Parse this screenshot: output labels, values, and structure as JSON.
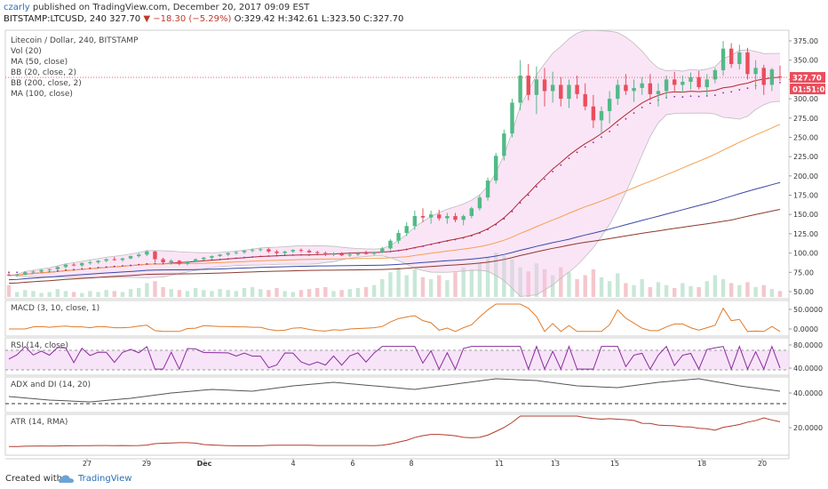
{
  "header": {
    "user": "czarly",
    "published_text": "published on TradingView.com, December 20, 2017 09:09 EST",
    "symbol": "BITSTAMP:LTCUSD, 240",
    "last": "327.70",
    "change": "−18.30 (−5.29%)",
    "ohlc": "O:329.42 H:342.61 L:323.50 C:327.70"
  },
  "legend": [
    "Litecoin / Dollar, 240, BITSTAMP",
    "Vol (20)",
    "MA (50, close)",
    "BB (20, close, 2)",
    "BB (200, close, 2)",
    "MA (100, close)"
  ],
  "price_tag": "327.70",
  "timer_tag": "01:51:02",
  "colors": {
    "up": "#53b987",
    "down": "#eb4d5c",
    "ma50": "#f5a04e",
    "bb20": "#b3282d",
    "bb200": "#6f2a8a",
    "ma100": "#8b3a2f",
    "blue": "#3b48a5",
    "macd": "#e07b2a",
    "rsi": "#8a2b9e",
    "adx": "#555555",
    "atr": "#b13c2c"
  },
  "chart_data": {
    "type": "candlestick",
    "price_axis": {
      "min": 50,
      "max": 375,
      "ticks": [
        "375.00",
        "350.00",
        "325.00",
        "300.00",
        "275.00",
        "250.00",
        "225.00",
        "200.00",
        "175.00",
        "150.00",
        "125.00",
        "100.00",
        "75.00",
        "50.00"
      ]
    },
    "x_ticks": [
      "27",
      "29",
      "Dec",
      "4",
      "6",
      "8",
      "11",
      "13",
      "15",
      "18",
      "20"
    ],
    "candles": [
      [
        72,
        74,
        70,
        71
      ],
      [
        71,
        73,
        69,
        72
      ],
      [
        72,
        76,
        71,
        75
      ],
      [
        75,
        78,
        73,
        76
      ],
      [
        76,
        79,
        74,
        78
      ],
      [
        78,
        80,
        76,
        79
      ],
      [
        79,
        83,
        78,
        82
      ],
      [
        82,
        86,
        80,
        85
      ],
      [
        85,
        87,
        83,
        84
      ],
      [
        84,
        88,
        82,
        87
      ],
      [
        87,
        90,
        85,
        88
      ],
      [
        88,
        91,
        86,
        90
      ],
      [
        90,
        93,
        88,
        92
      ],
      [
        92,
        95,
        90,
        91
      ],
      [
        91,
        94,
        89,
        93
      ],
      [
        93,
        97,
        92,
        96
      ],
      [
        96,
        100,
        94,
        98
      ],
      [
        98,
        104,
        96,
        102
      ],
      [
        102,
        103,
        88,
        92
      ],
      [
        92,
        94,
        86,
        88
      ],
      [
        88,
        92,
        85,
        90
      ],
      [
        90,
        91,
        84,
        86
      ],
      [
        86,
        90,
        84,
        89
      ],
      [
        89,
        93,
        88,
        92
      ],
      [
        92,
        95,
        90,
        94
      ],
      [
        94,
        97,
        92,
        96
      ],
      [
        96,
        99,
        95,
        98
      ],
      [
        98,
        101,
        96,
        100
      ],
      [
        100,
        103,
        98,
        101
      ],
      [
        101,
        104,
        99,
        103
      ],
      [
        103,
        106,
        101,
        104
      ],
      [
        104,
        107,
        102,
        105
      ],
      [
        105,
        107,
        100,
        102
      ],
      [
        102,
        104,
        98,
        100
      ],
      [
        100,
        103,
        98,
        102
      ],
      [
        102,
        105,
        100,
        104
      ],
      [
        104,
        106,
        101,
        103
      ],
      [
        103,
        105,
        100,
        101
      ],
      [
        101,
        103,
        98,
        100
      ],
      [
        100,
        102,
        96,
        98
      ],
      [
        98,
        101,
        96,
        99
      ],
      [
        99,
        101,
        96,
        97
      ],
      [
        97,
        100,
        95,
        98
      ],
      [
        98,
        101,
        96,
        100
      ],
      [
        100,
        103,
        98,
        99
      ],
      [
        99,
        102,
        97,
        101
      ],
      [
        101,
        108,
        100,
        106
      ],
      [
        106,
        118,
        104,
        116
      ],
      [
        116,
        130,
        112,
        126
      ],
      [
        126,
        140,
        122,
        135
      ],
      [
        135,
        155,
        130,
        148
      ],
      [
        148,
        158,
        140,
        146
      ],
      [
        146,
        155,
        138,
        150
      ],
      [
        150,
        156,
        142,
        145
      ],
      [
        145,
        152,
        138,
        148
      ],
      [
        148,
        152,
        140,
        143
      ],
      [
        143,
        150,
        136,
        148
      ],
      [
        148,
        160,
        145,
        158
      ],
      [
        158,
        175,
        155,
        172
      ],
      [
        172,
        198,
        168,
        194
      ],
      [
        194,
        230,
        190,
        226
      ],
      [
        226,
        260,
        220,
        255
      ],
      [
        255,
        300,
        250,
        295
      ],
      [
        295,
        350,
        285,
        330
      ],
      [
        330,
        345,
        298,
        305
      ],
      [
        305,
        342,
        280,
        325
      ],
      [
        325,
        340,
        290,
        310
      ],
      [
        310,
        335,
        295,
        318
      ],
      [
        318,
        328,
        290,
        300
      ],
      [
        300,
        325,
        288,
        318
      ],
      [
        318,
        330,
        300,
        306
      ],
      [
        306,
        320,
        285,
        290
      ],
      [
        290,
        305,
        262,
        272
      ],
      [
        272,
        290,
        255,
        284
      ],
      [
        284,
        310,
        268,
        300
      ],
      [
        300,
        325,
        292,
        318
      ],
      [
        318,
        332,
        305,
        310
      ],
      [
        310,
        325,
        296,
        314
      ],
      [
        314,
        328,
        305,
        320
      ],
      [
        320,
        332,
        298,
        306
      ],
      [
        306,
        320,
        290,
        310
      ],
      [
        310,
        330,
        300,
        325
      ],
      [
        325,
        335,
        310,
        318
      ],
      [
        318,
        330,
        308,
        322
      ],
      [
        322,
        334,
        312,
        328
      ],
      [
        328,
        336,
        312,
        315
      ],
      [
        315,
        332,
        305,
        325
      ],
      [
        325,
        340,
        320,
        337
      ],
      [
        337,
        375,
        330,
        365
      ],
      [
        365,
        372,
        340,
        345
      ],
      [
        345,
        370,
        338,
        360
      ],
      [
        360,
        366,
        325,
        332
      ],
      [
        332,
        350,
        312,
        340
      ],
      [
        340,
        344,
        305,
        318
      ],
      [
        318,
        340,
        310,
        338
      ],
      [
        329,
        343,
        323,
        328
      ]
    ],
    "volume": [
      12,
      5,
      7,
      6,
      4,
      5,
      8,
      6,
      5,
      4,
      6,
      5,
      7,
      6,
      5,
      8,
      9,
      14,
      16,
      10,
      8,
      7,
      6,
      9,
      7,
      6,
      8,
      7,
      6,
      9,
      10,
      8,
      7,
      9,
      6,
      5,
      7,
      8,
      9,
      10,
      6,
      7,
      8,
      9,
      10,
      12,
      18,
      25,
      30,
      22,
      28,
      20,
      18,
      22,
      17,
      25,
      30,
      28,
      35,
      40,
      45,
      42,
      38,
      30,
      26,
      34,
      28,
      22,
      30,
      25,
      18,
      22,
      28,
      20,
      16,
      24,
      14,
      12,
      18,
      10,
      15,
      12,
      9,
      14,
      11,
      10,
      16,
      22,
      18,
      14,
      12,
      15,
      10,
      12,
      8,
      6
    ]
  }
}
